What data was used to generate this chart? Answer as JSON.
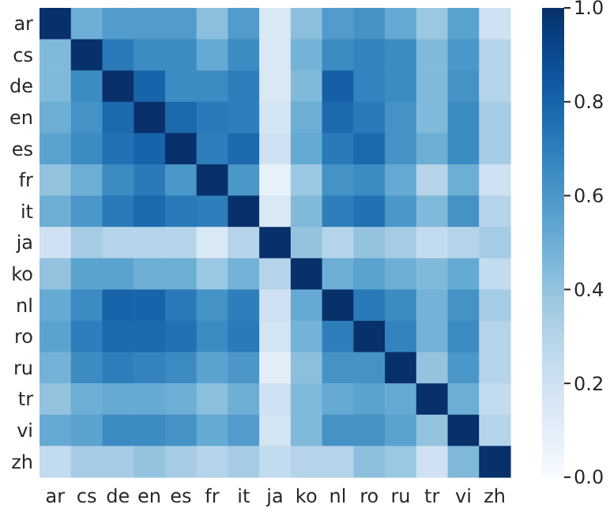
{
  "chart_data": {
    "type": "heatmap",
    "categories": [
      "ar",
      "cs",
      "de",
      "en",
      "es",
      "fr",
      "it",
      "ja",
      "ko",
      "nl",
      "ro",
      "ru",
      "tr",
      "vi",
      "zh"
    ],
    "y_categories": [
      "ar",
      "cs",
      "de",
      "en",
      "es",
      "fr",
      "it",
      "ja",
      "ko",
      "nl",
      "ro",
      "ru",
      "tr",
      "vi",
      "zh"
    ],
    "cells": [
      [
        1,
        0.5,
        0.58,
        0.58,
        0.58,
        0.42,
        0.58,
        0.15,
        0.42,
        0.58,
        0.62,
        0.52,
        0.38,
        0.55,
        0.2
      ],
      [
        0.45,
        1,
        0.72,
        0.65,
        0.65,
        0.52,
        0.65,
        0.15,
        0.48,
        0.65,
        0.68,
        0.65,
        0.45,
        0.6,
        0.3
      ],
      [
        0.45,
        0.65,
        1,
        0.8,
        0.65,
        0.65,
        0.7,
        0.15,
        0.45,
        0.82,
        0.68,
        0.65,
        0.45,
        0.62,
        0.3
      ],
      [
        0.5,
        0.62,
        0.78,
        1,
        0.78,
        0.72,
        0.7,
        0.18,
        0.5,
        0.78,
        0.72,
        0.62,
        0.45,
        0.65,
        0.35
      ],
      [
        0.55,
        0.65,
        0.75,
        0.8,
        1,
        0.7,
        0.78,
        0.2,
        0.52,
        0.72,
        0.78,
        0.62,
        0.5,
        0.65,
        0.35
      ],
      [
        0.4,
        0.5,
        0.65,
        0.72,
        0.6,
        1,
        0.6,
        0.08,
        0.38,
        0.62,
        0.65,
        0.52,
        0.3,
        0.5,
        0.2
      ],
      [
        0.5,
        0.6,
        0.72,
        0.78,
        0.72,
        0.7,
        1,
        0.15,
        0.45,
        0.7,
        0.75,
        0.6,
        0.45,
        0.62,
        0.3
      ],
      [
        0.2,
        0.35,
        0.3,
        0.3,
        0.3,
        0.15,
        0.3,
        1,
        0.4,
        0.3,
        0.4,
        0.35,
        0.25,
        0.3,
        0.35
      ],
      [
        0.4,
        0.55,
        0.55,
        0.5,
        0.5,
        0.38,
        0.48,
        0.3,
        1,
        0.5,
        0.55,
        0.5,
        0.45,
        0.52,
        0.25
      ],
      [
        0.52,
        0.65,
        0.8,
        0.8,
        0.72,
        0.62,
        0.7,
        0.2,
        0.52,
        1,
        0.72,
        0.65,
        0.48,
        0.62,
        0.35
      ],
      [
        0.55,
        0.7,
        0.78,
        0.78,
        0.75,
        0.65,
        0.72,
        0.18,
        0.48,
        0.7,
        1,
        0.68,
        0.48,
        0.65,
        0.3
      ],
      [
        0.48,
        0.65,
        0.7,
        0.68,
        0.65,
        0.55,
        0.6,
        0.1,
        0.42,
        0.62,
        0.62,
        1,
        0.4,
        0.6,
        0.3
      ],
      [
        0.4,
        0.5,
        0.52,
        0.52,
        0.5,
        0.42,
        0.5,
        0.2,
        0.45,
        0.52,
        0.55,
        0.52,
        1,
        0.5,
        0.25
      ],
      [
        0.52,
        0.55,
        0.65,
        0.65,
        0.62,
        0.52,
        0.58,
        0.18,
        0.45,
        0.62,
        0.62,
        0.55,
        0.4,
        1,
        0.3
      ],
      [
        0.25,
        0.35,
        0.35,
        0.4,
        0.35,
        0.3,
        0.35,
        0.25,
        0.3,
        0.3,
        0.42,
        0.38,
        0.2,
        0.45,
        1
      ]
    ],
    "clim": [
      0,
      1
    ],
    "cticks": [
      {
        "value": 0,
        "label": "0.0"
      },
      {
        "value": 0.2,
        "label": "0.2"
      },
      {
        "value": 0.4,
        "label": "0.4"
      },
      {
        "value": 0.6,
        "label": "0.6"
      },
      {
        "value": 0.8,
        "label": "0.8"
      },
      {
        "value": 1,
        "label": "1.0"
      }
    ]
  }
}
